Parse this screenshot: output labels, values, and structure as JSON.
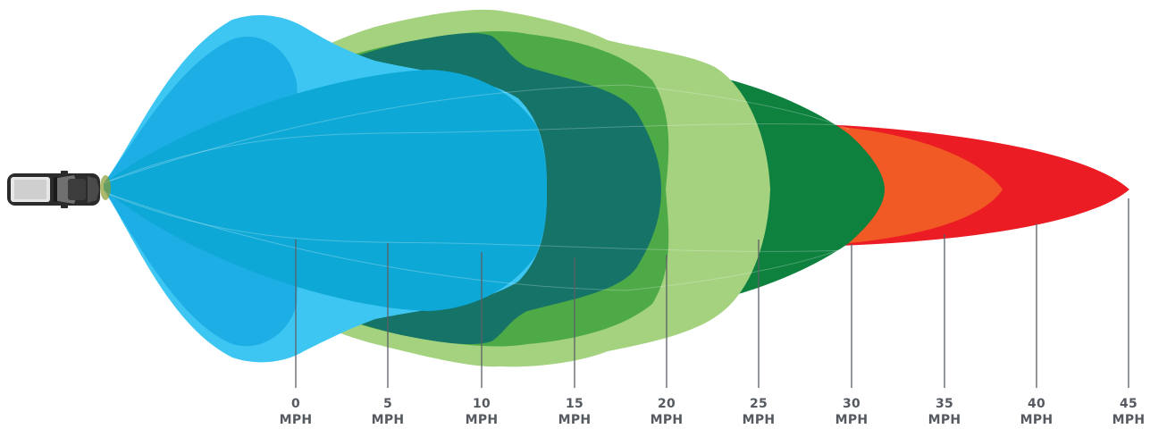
{
  "diagram": {
    "ticks": [
      {
        "value": "0",
        "unit": "MPH"
      },
      {
        "value": "5",
        "unit": "MPH"
      },
      {
        "value": "10",
        "unit": "MPH"
      },
      {
        "value": "15",
        "unit": "MPH"
      },
      {
        "value": "20",
        "unit": "MPH"
      },
      {
        "value": "25",
        "unit": "MPH"
      },
      {
        "value": "30",
        "unit": "MPH"
      },
      {
        "value": "35",
        "unit": "MPH"
      },
      {
        "value": "40",
        "unit": "MPH"
      },
      {
        "value": "45",
        "unit": "MPH"
      }
    ],
    "colors": {
      "speed_0": "#3ec6f3",
      "speed_5": "#1eaee6",
      "speed_10": "#a4d27f",
      "speed_15": "#4ea947",
      "speed_20": "#157367",
      "speed_25": "#0e813f",
      "speed_30": "#ec1c24",
      "speed_35": "#f15a24",
      "core": "#0ea8d6",
      "tick_text": "#555a60"
    },
    "icons": [
      "car-icon"
    ]
  }
}
